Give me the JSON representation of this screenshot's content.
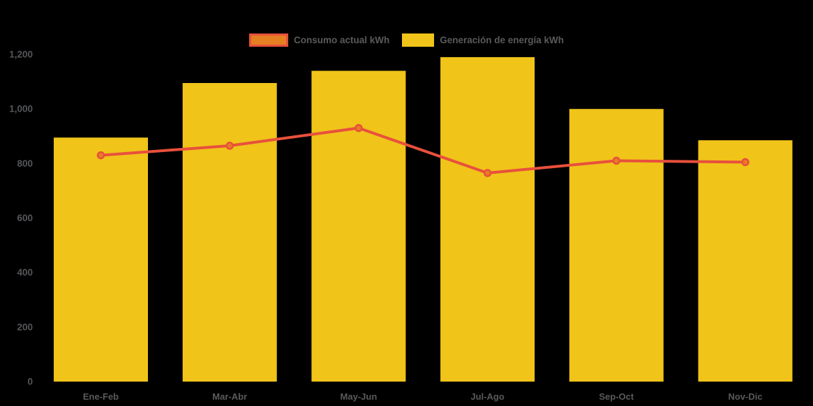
{
  "background_color": "#000000",
  "text_color": "#5a5a5b",
  "chart_data": {
    "type": "combo",
    "categories": [
      "Ene-Feb",
      "Mar-Abr",
      "May-Jun",
      "Jul-Ago",
      "Sep-Oct",
      "Nov-Dic"
    ],
    "series": [
      {
        "name": "Consumo actual kWh",
        "type": "line",
        "values": [
          830,
          865,
          930,
          765,
          810,
          805
        ],
        "line_color": "#e8503c",
        "marker_fill": "#e67e22"
      },
      {
        "name": "Generación de energía kWh",
        "type": "bar",
        "values": [
          895,
          1095,
          1140,
          1190,
          1000,
          885
        ],
        "color": "#f0c419"
      }
    ],
    "ylim": [
      0,
      1200
    ],
    "yticks": {
      "values": [
        0,
        200,
        400,
        600,
        800,
        1000,
        1200
      ],
      "labels": [
        "0",
        "200",
        "400",
        "600",
        "800",
        "1,000",
        "1,200"
      ]
    },
    "grid": false,
    "legend_position": "top-center",
    "axis_label_color": "#55565a"
  }
}
